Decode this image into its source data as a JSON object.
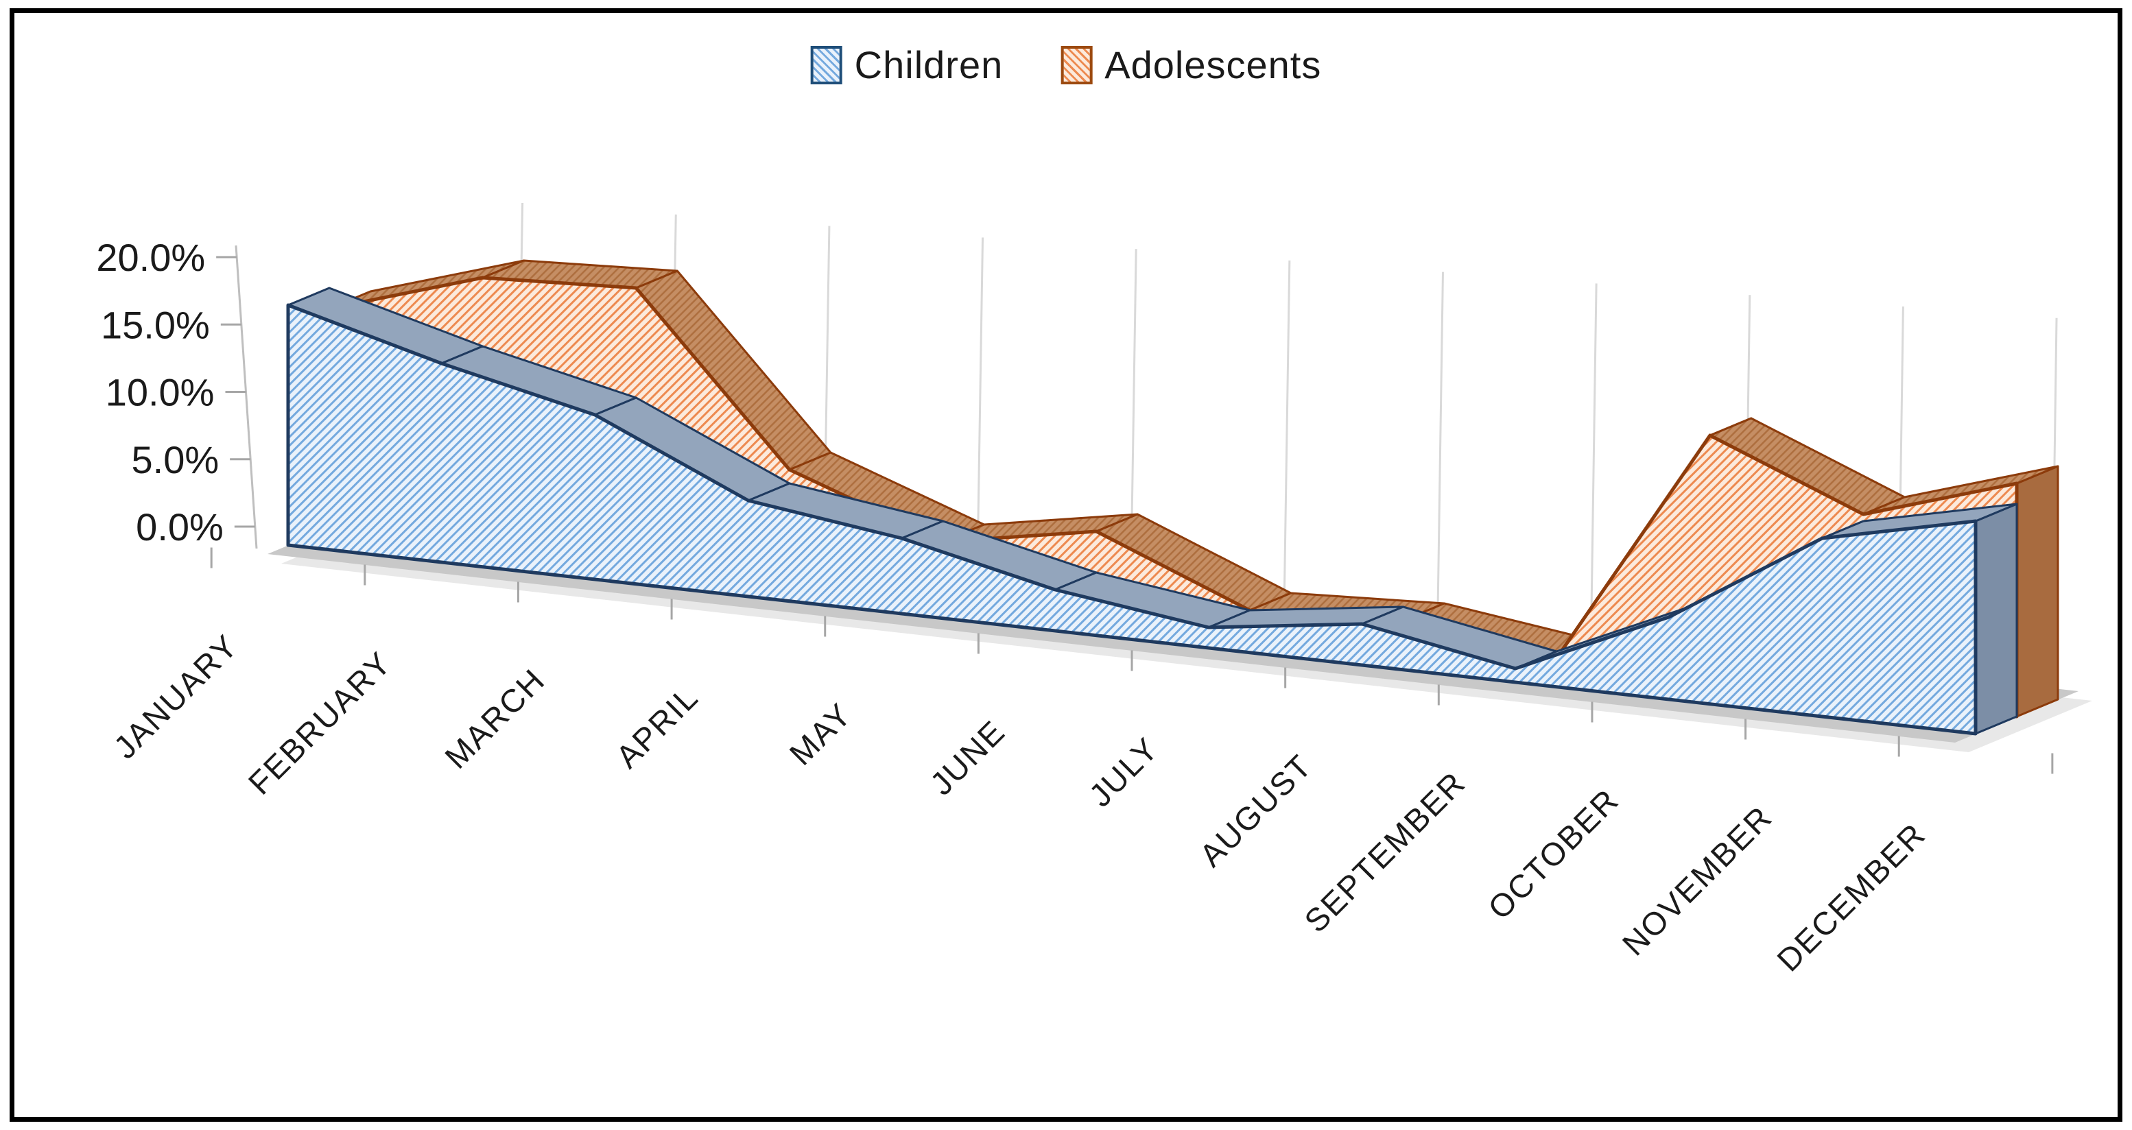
{
  "figure": {
    "border_color": "#000000",
    "background_color": "#ffffff"
  },
  "legend": {
    "position": "top-center",
    "items": [
      {
        "label": "Children",
        "swatch": "blue-hatch-swatch"
      },
      {
        "label": "Adolescents",
        "swatch": "orange-hatch-swatch"
      }
    ]
  },
  "chart_data": {
    "type": "area",
    "projection": "3d-oblique",
    "title": "",
    "xlabel": "",
    "ylabel": "",
    "categories": [
      "JANUARY",
      "FEBRUARY",
      "MARCH",
      "APRIL",
      "MAY",
      "JUNE",
      "JULY",
      "AUGUST",
      "SEPTEMBER",
      "OCTOBER",
      "NOVEMBER",
      "DECEMBER"
    ],
    "series": [
      {
        "name": "Children",
        "accent_color": "#5B9BD5",
        "outline_color": "#1F3A5F",
        "values": [
          17.5,
          14.5,
          12.0,
          7.0,
          5.5,
          3.0,
          1.5,
          3.0,
          1.0,
          6.0,
          13.0,
          15.5
        ]
      },
      {
        "name": "Adolescents",
        "accent_color": "#ED7D31",
        "outline_color": "#8C3B0B",
        "values": [
          16.0,
          19.5,
          20.0,
          8.0,
          4.0,
          6.0,
          1.5,
          2.0,
          0.5,
          18.0,
          13.5,
          17.0
        ]
      }
    ],
    "y_tick_labels": [
      "0.0%",
      "5.0%",
      "10.0%",
      "15.0%",
      "20.0%"
    ],
    "y_tick_values": [
      0,
      5,
      10,
      15,
      20
    ],
    "ylim": [
      0,
      20
    ],
    "grid": true,
    "legend_position": "top-center"
  },
  "colors": {
    "blue_fill_bg": "#EAF2FB",
    "blue_fill_line": "#74A9DE",
    "blue_ribbon": "#93A5BC",
    "blue_side": "#7C8EA6",
    "blue_outline": "#1F3A5F",
    "orange_fill_bg": "#FCEADC",
    "orange_fill_line": "#ED8A50",
    "orange_ribbon": "#C18A62",
    "orange_side": "#A86B3F",
    "orange_outline": "#8C3B0B",
    "floor": "#C8C8C8",
    "floor_shadow": "#E2E2E2",
    "gridline": "#D9D9D9",
    "axis_line": "#BFBFBF",
    "tick": "#A6A6A6",
    "label_text": "#1a1a1a"
  }
}
